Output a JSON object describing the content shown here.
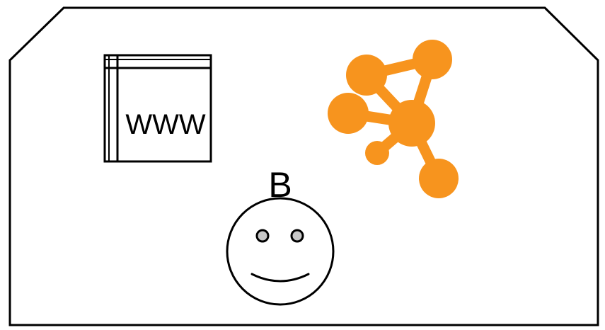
{
  "web_page": {
    "label": "WWW",
    "icon": "web-page-icon"
  },
  "network": {
    "icon": "network-nodes-icon",
    "color": "#F7941E"
  },
  "user": {
    "label": "B",
    "icon": "smiley-face-icon",
    "eye_color": "#C8C8C8"
  },
  "colors": {
    "stroke": "#000000",
    "background": "#FFFFFF"
  }
}
